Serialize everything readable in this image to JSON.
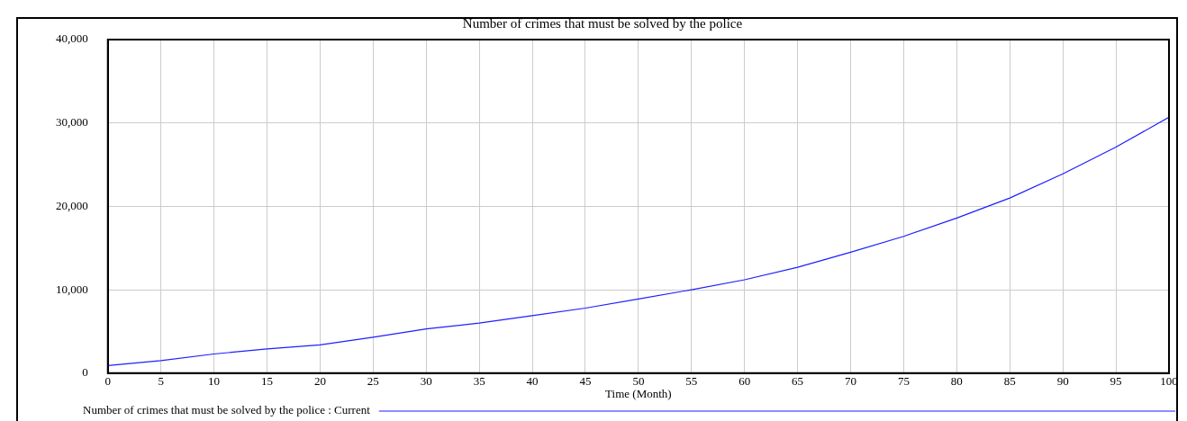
{
  "chart_data": {
    "type": "line",
    "title": "Number of crimes that must be solved by the police",
    "xlabel": "Time (Month)",
    "x": [
      0,
      5,
      10,
      15,
      20,
      25,
      30,
      35,
      40,
      45,
      50,
      55,
      60,
      65,
      70,
      75,
      80,
      85,
      90,
      95,
      100
    ],
    "series": [
      {
        "name": "Number of crimes that must be solved by the police : Current",
        "color": "#1f1fff",
        "values": [
          900,
          1500,
          2300,
          2900,
          3400,
          4300,
          5300,
          6000,
          6900,
          7800,
          8900,
          10000,
          11200,
          12700,
          14500,
          16400,
          18600,
          21000,
          23900,
          27100,
          30700
        ]
      }
    ],
    "xlim": [
      0,
      100
    ],
    "xticks": [
      0,
      5,
      10,
      15,
      20,
      25,
      30,
      35,
      40,
      45,
      50,
      55,
      60,
      65,
      70,
      75,
      80,
      85,
      90,
      95,
      100
    ],
    "ylim": [
      0,
      40000
    ],
    "yticks": [
      {
        "value": 0,
        "label": "0"
      },
      {
        "value": 10000,
        "label": "10,000"
      },
      {
        "value": 20000,
        "label": "20,000"
      },
      {
        "value": 30000,
        "label": "30,000"
      },
      {
        "value": 40000,
        "label": "40,000"
      }
    ],
    "grid": true,
    "legend": "bottom",
    "marker": "none",
    "line_style": "solid"
  }
}
